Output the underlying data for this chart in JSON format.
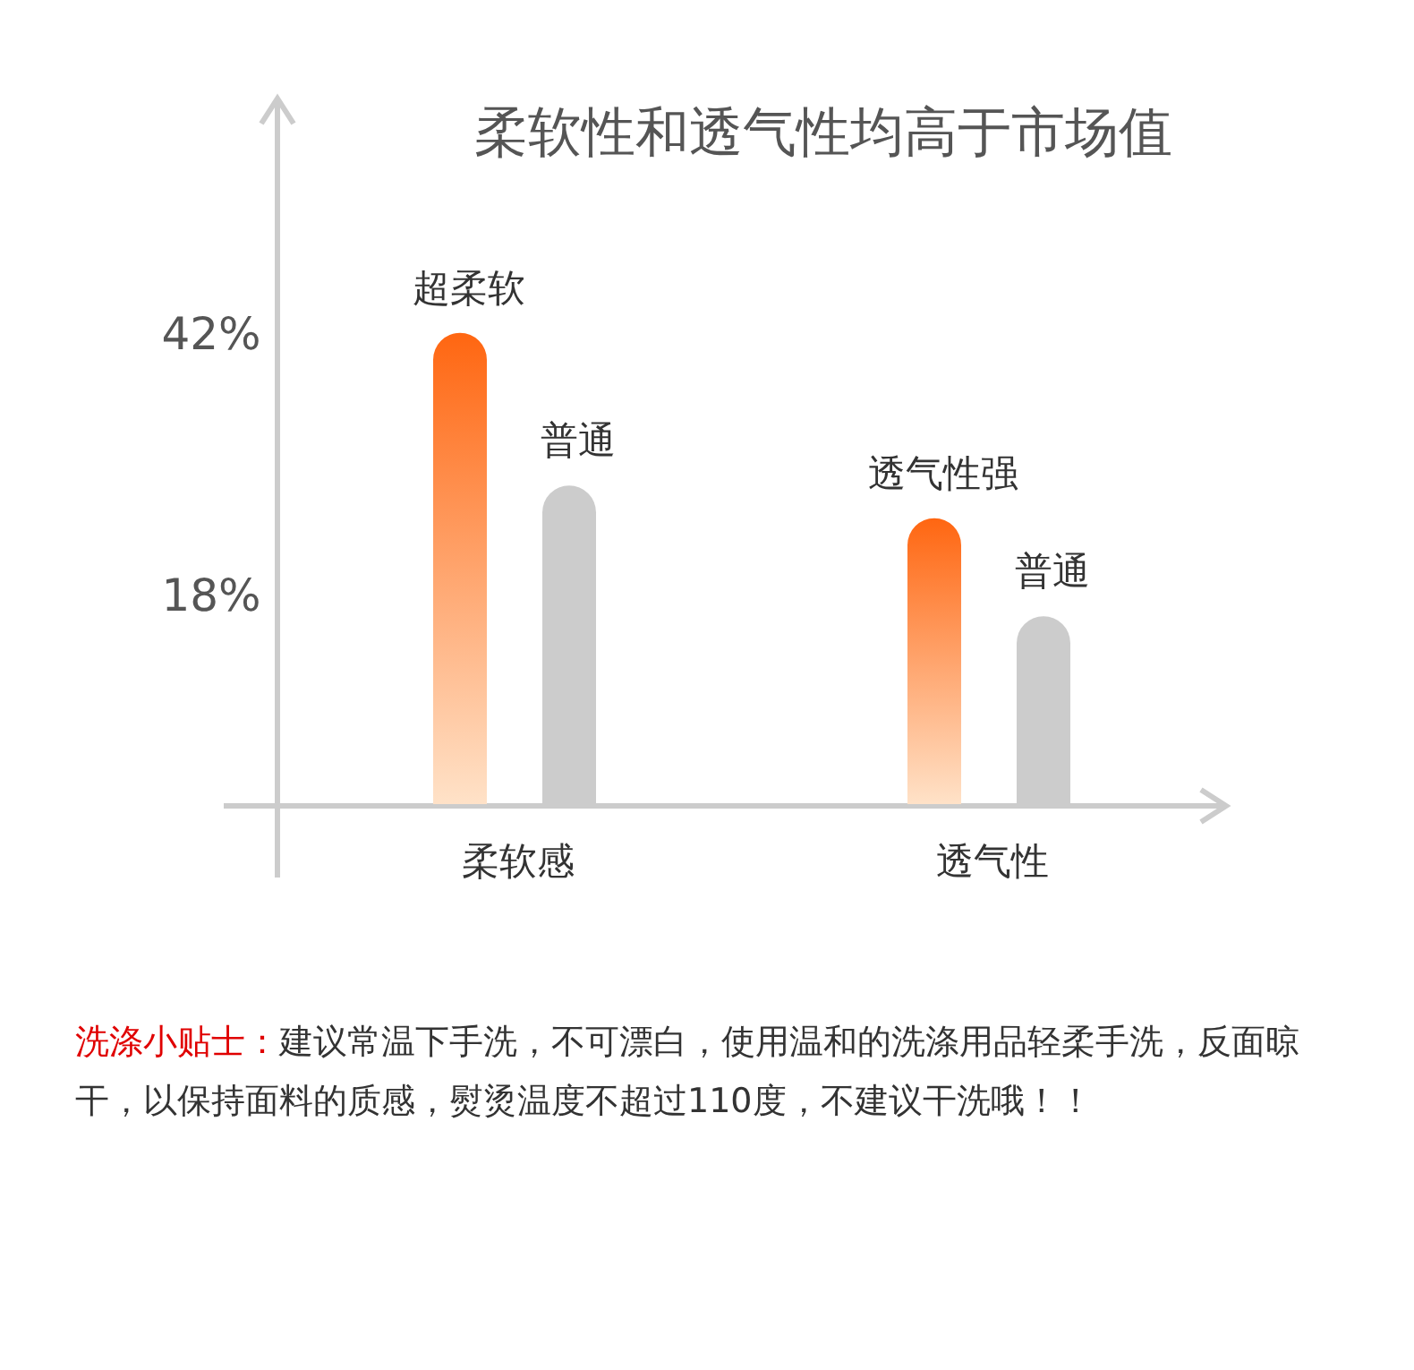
{
  "chart_data": {
    "type": "bar",
    "title": "柔软性和透气性均高于市场值",
    "categories": [
      "柔软感",
      "透气性"
    ],
    "series": [
      {
        "color": "#ff6611",
        "values": [
          42,
          25
        ],
        "value_labels": [
          "超柔软",
          "透气性强"
        ]
      },
      {
        "color": "#cccccc",
        "values": [
          28,
          16
        ],
        "value_labels": [
          "普通",
          "普通"
        ]
      }
    ],
    "ylim": [
      -1.4,
      63.5
    ],
    "yticks": [
      {
        "value": 42,
        "label": "42%"
      },
      {
        "value": 18,
        "label": "18%"
      }
    ],
    "grid": false,
    "annotations": [
      "洗涤小贴士：",
      "建议常温下手洗，不可漂白，使用温和的洗涤用品轻柔手洗，反面晾干，以保持面料的质感，熨烫温度不超过110度，不建议干洗哦！！"
    ]
  }
}
